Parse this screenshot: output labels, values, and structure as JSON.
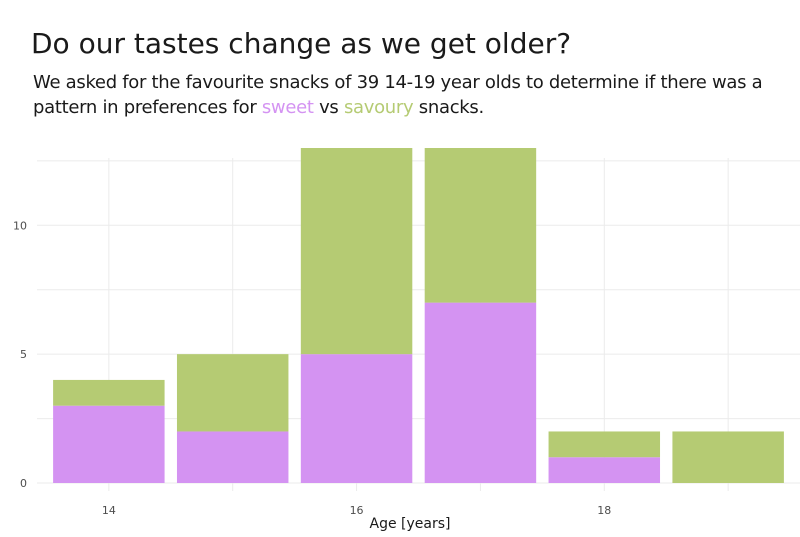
{
  "chart_data": {
    "type": "bar",
    "stacked": true,
    "title": "Do our tastes change as we get older?",
    "subtitle": {
      "before": "We asked for the favourite snacks of 39 14-19 year olds to determine if there was a pattern in preferences for",
      "sweet_word": "sweet",
      "middle": "vs",
      "savoury_word": "savoury",
      "after": "snacks."
    },
    "xlabel": "Age [years]",
    "ylabel": "",
    "categories": [
      14,
      15,
      16,
      17,
      18,
      19
    ],
    "series": [
      {
        "name": "sweet",
        "color": "#d493f2",
        "values": [
          3,
          2,
          5,
          7,
          1,
          0
        ]
      },
      {
        "name": "savoury",
        "color": "#b5cb73",
        "values": [
          1,
          3,
          8,
          6,
          1,
          2
        ]
      }
    ],
    "ylim": [
      0,
      13
    ],
    "xlim": [
      13.42,
      19.58
    ],
    "x_ticks": [
      14,
      16,
      18
    ],
    "y_ticks": [
      0,
      5,
      10
    ],
    "grid": true,
    "legend": "none"
  }
}
